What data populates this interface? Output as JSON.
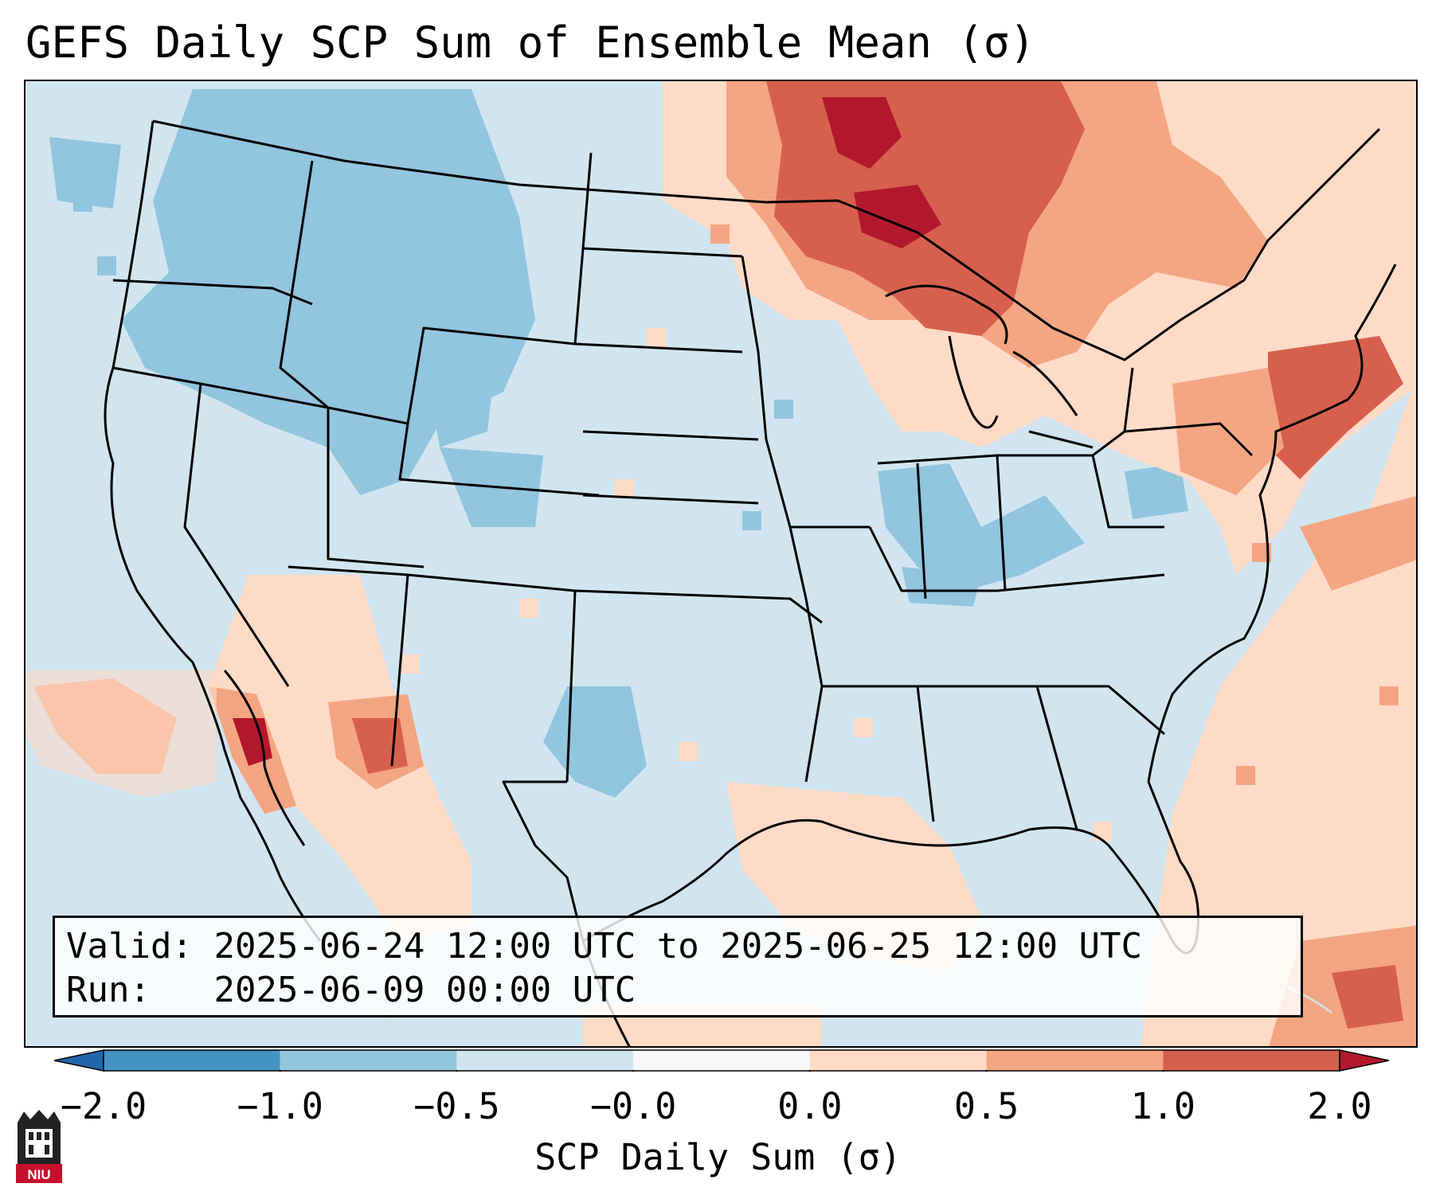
{
  "title": "GEFS Daily SCP Sum of Ensemble Mean (σ)",
  "info": {
    "valid_label": "Valid:",
    "valid_value": "2025-06-24 12:00 UTC to 2025-06-25 12:00 UTC",
    "run_label": "Run:",
    "run_value": "2025-06-09 00:00 UTC"
  },
  "colorbar": {
    "label": "SCP Daily Sum (σ)",
    "ticks": [
      "−2.0",
      "−1.0",
      "−0.5",
      "−0.0",
      "0.0",
      "0.5",
      "1.0",
      "2.0"
    ],
    "bin_colors": [
      "#4393c3",
      "#92c5de",
      "#d1e5f0",
      "#f7f7f7",
      "#fddbc7",
      "#f4a582",
      "#d6604d"
    ],
    "under_color": "#2166ac",
    "over_color": "#b2182b"
  },
  "logo_text": "NIU",
  "map": {
    "projection": "lambert-conformal",
    "region": "CONUS",
    "fields": [
      {
        "region": "Upper Midwest / Great Lakes",
        "sigma": 1.5
      },
      {
        "region": "Northeast / New England",
        "sigma": 1.2
      },
      {
        "region": "Southwest / Sonora",
        "sigma": 1.1
      },
      {
        "region": "Northwest / Northern Rockies",
        "sigma": -0.7
      },
      {
        "region": "Ohio Valley",
        "sigma": -0.6
      },
      {
        "region": "Central Texas",
        "sigma": -0.6
      },
      {
        "region": "Southern Plains",
        "sigma": -0.2
      },
      {
        "region": "Gulf / Atlantic",
        "sigma": 0.2
      }
    ]
  }
}
